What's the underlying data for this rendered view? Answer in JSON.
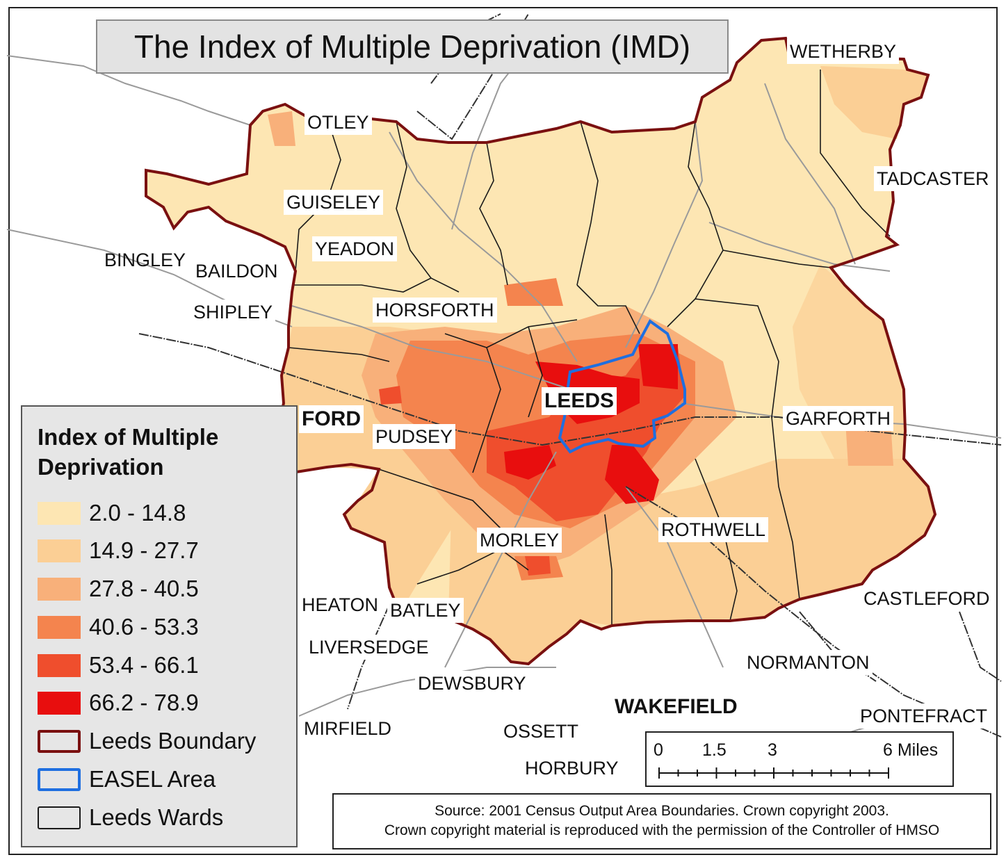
{
  "title": "The Index of Multiple Deprivation (IMD)",
  "colors": {
    "class1": "#fde6b3",
    "class2": "#fbcf95",
    "class3": "#f8b07a",
    "class4": "#f4844e",
    "class5": "#ef4e2d",
    "class6": "#e80e0e",
    "leeds_boundary": "#7a1010",
    "easel_area": "#1f6fe0",
    "leeds_wards": "#1a1a1a",
    "roads": "#9a9a9a",
    "railways": "#333333"
  },
  "legend": {
    "title": "Index of Multiple Deprivation",
    "classes": [
      {
        "label": "2.0 - 14.8",
        "min": 2.0,
        "max": 14.8,
        "color": "#fde6b3"
      },
      {
        "label": "14.9 - 27.7",
        "min": 14.9,
        "max": 27.7,
        "color": "#fbcf95"
      },
      {
        "label": "27.8 - 40.5",
        "min": 27.8,
        "max": 40.5,
        "color": "#f8b07a"
      },
      {
        "label": "40.6 - 53.3",
        "min": 40.6,
        "max": 53.3,
        "color": "#f4844e"
      },
      {
        "label": "53.4 - 66.1",
        "min": 53.4,
        "max": 66.1,
        "color": "#ef4e2d"
      },
      {
        "label": "66.2 - 78.9",
        "min": 66.2,
        "max": 78.9,
        "color": "#e80e0e"
      }
    ],
    "lines": [
      {
        "label": "Leeds Boundary",
        "color": "#7a1010"
      },
      {
        "label": "EASEL Area",
        "color": "#1f6fe0"
      },
      {
        "label": "Leeds Wards",
        "color": "#1a1a1a"
      }
    ]
  },
  "places": {
    "wetherby": "WETHERBY",
    "otley": "OTLEY",
    "tadcaster": "TADCASTER",
    "guiseley": "GUISELEY",
    "yeadon": "YEADON",
    "bingley": "BINGLEY",
    "baildon": "BAILDON",
    "shipley": "SHIPLEY",
    "horsforth": "HORSFORTH",
    "leeds": "LEEDS",
    "bradford": "FORD",
    "pudsey": "PUDSEY",
    "garforth": "GARFORTH",
    "morley": "MORLEY",
    "rothwell": "ROTHWELL",
    "castleford": "CASTLEFORD",
    "heaton": "HEATON",
    "batley": "BATLEY",
    "liversedge": "LIVERSEDGE",
    "normanton": "NORMANTON",
    "dewsbury": "DEWSBURY",
    "wakefield": "WAKEFIELD",
    "pontefract": "PONTEFRACT",
    "mirfield": "MIRFIELD",
    "ossett": "OSSETT",
    "horbury": "HORBURY"
  },
  "scale": {
    "ticks": [
      {
        "label": "0",
        "value": 0
      },
      {
        "label": "1.5",
        "value": 1.5
      },
      {
        "label": "3",
        "value": 3
      },
      {
        "label": "6 Miles",
        "value": 6
      }
    ],
    "max": 6
  },
  "source": {
    "line1": "Source: 2001 Census Output Area Boundaries. Crown copyright 2003.",
    "line2": "Crown copyright material is reproduced with the permission of the Controller of HMSO"
  }
}
